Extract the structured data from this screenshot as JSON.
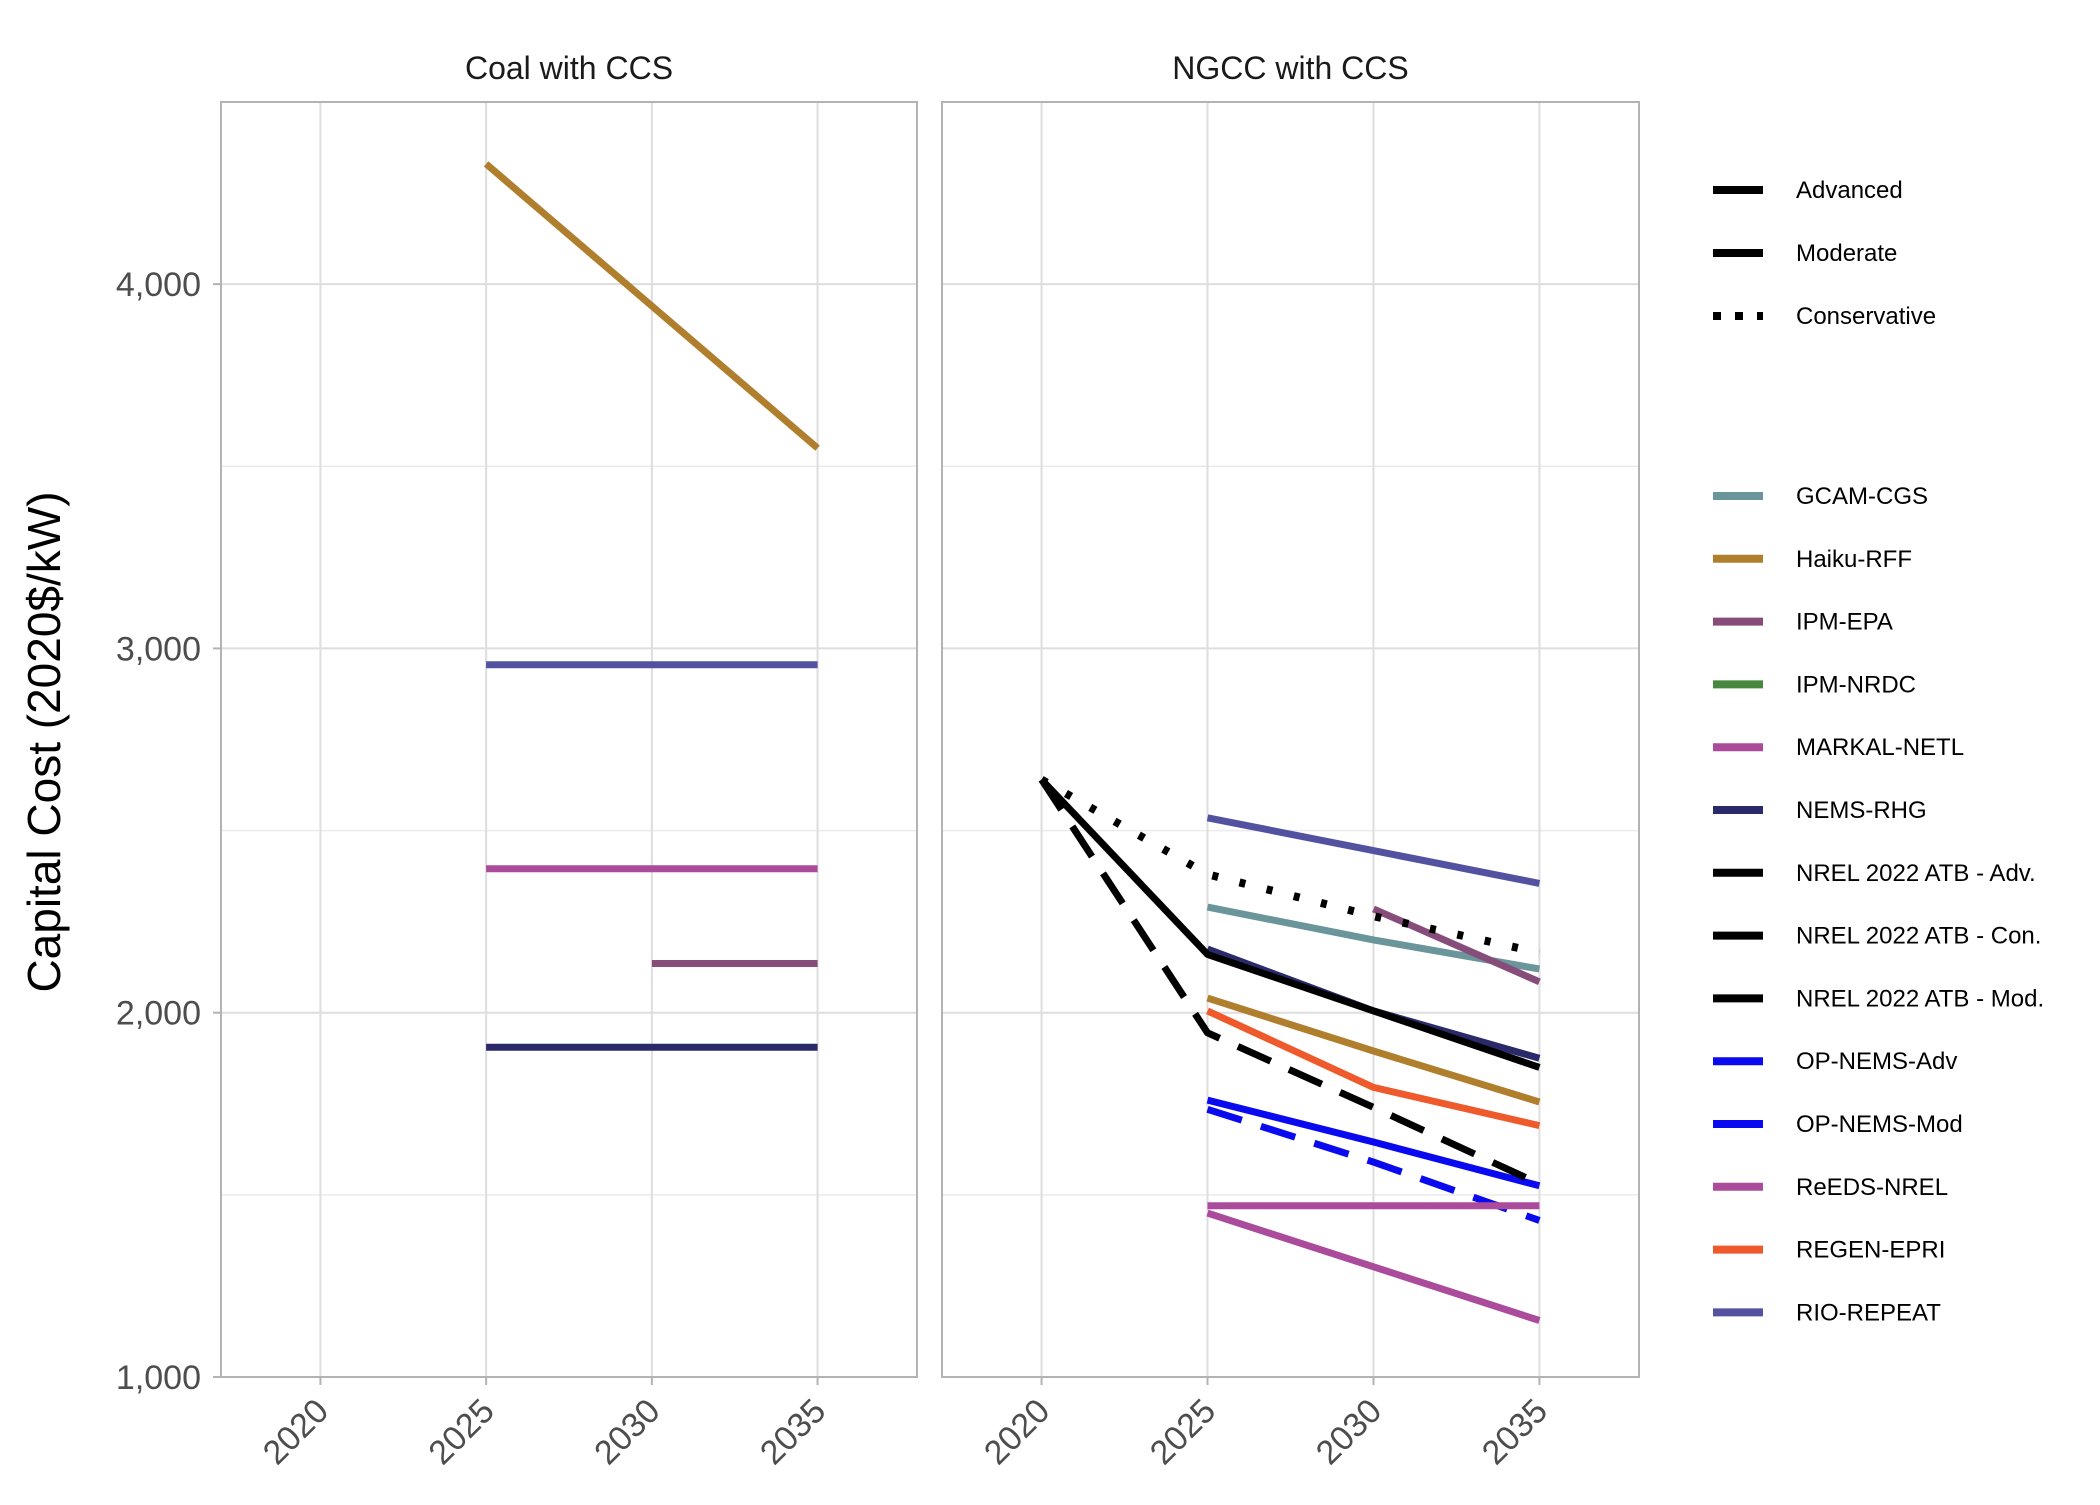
{
  "chart_data": {
    "type": "line",
    "ylabel": "Capital Cost (2020$/kW)",
    "y_ticks": [
      {
        "value": 1000,
        "label": "1,000"
      },
      {
        "value": 2000,
        "label": "2,000"
      },
      {
        "value": 3000,
        "label": "3,000"
      },
      {
        "value": 4000,
        "label": "4,000"
      }
    ],
    "y_minor": [
      1500,
      2500,
      3500
    ],
    "ylim": [
      1000,
      4500
    ],
    "x_ticks": [
      {
        "value": 2020,
        "label": "2020"
      },
      {
        "value": 2025,
        "label": "2025"
      },
      {
        "value": 2030,
        "label": "2030"
      },
      {
        "value": 2035,
        "label": "2035"
      }
    ],
    "xlim": [
      2017,
      2038
    ],
    "grid": true,
    "legend_position": "right",
    "linetype_legend": [
      {
        "label": "Advanced",
        "dash": "solid"
      },
      {
        "label": "Moderate",
        "dash": "solid"
      },
      {
        "label": "Conservative",
        "dash": "dotted"
      }
    ],
    "color_legend": [
      {
        "label": "GCAM-CGS",
        "color": "#6a959b"
      },
      {
        "label": "Haiku-RFF",
        "color": "#b07f2e"
      },
      {
        "label": "IPM-EPA",
        "color": "#874d7a"
      },
      {
        "label": "IPM-NRDC",
        "color": "#46883d"
      },
      {
        "label": "MARKAL-NETL",
        "color": "#aa4b9b"
      },
      {
        "label": "NEMS-RHG",
        "color": "#2a2a6a"
      },
      {
        "label": "NREL 2022 ATB - Adv.",
        "color": "#000000"
      },
      {
        "label": "NREL 2022 ATB - Con.",
        "color": "#000000"
      },
      {
        "label": "NREL 2022 ATB - Mod.",
        "color": "#000000"
      },
      {
        "label": "OP-NEMS-Adv",
        "color": "#0a0af0"
      },
      {
        "label": "OP-NEMS-Mod",
        "color": "#0a0af0"
      },
      {
        "label": "ReEDS-NREL",
        "color": "#aa4b9b"
      },
      {
        "label": "REGEN-EPRI",
        "color": "#ee5a2c"
      },
      {
        "label": "RIO-REPEAT",
        "color": "#5252a0"
      }
    ],
    "panels": [
      {
        "title": "Coal with CCS",
        "series": [
          {
            "model": "Haiku-RFF",
            "color": "#b07f2e",
            "dash": "solid",
            "x": [
              2025,
              2035
            ],
            "y": [
              4330,
              3550
            ]
          },
          {
            "model": "RIO-REPEAT",
            "color": "#5252a0",
            "dash": "solid",
            "x": [
              2025,
              2035
            ],
            "y": [
              2955,
              2955
            ]
          },
          {
            "model": "MARKAL-NETL",
            "color": "#aa4b9b",
            "dash": "solid",
            "x": [
              2025,
              2035
            ],
            "y": [
              2395,
              2395
            ]
          },
          {
            "model": "IPM-EPA",
            "color": "#874d7a",
            "dash": "solid",
            "x": [
              2030,
              2035
            ],
            "y": [
              2135,
              2135
            ]
          },
          {
            "model": "NEMS-RHG",
            "color": "#2a2a6a",
            "dash": "solid",
            "x": [
              2025,
              2035
            ],
            "y": [
              1905,
              1905
            ]
          }
        ]
      },
      {
        "title": "NGCC with CCS",
        "series": [
          {
            "model": "RIO-REPEAT",
            "color": "#5252a0",
            "dash": "solid",
            "x": [
              2025,
              2035
            ],
            "y": [
              2535,
              2355
            ]
          },
          {
            "model": "GCAM-CGS",
            "color": "#6a959b",
            "dash": "solid",
            "x": [
              2025,
              2030,
              2035
            ],
            "y": [
              2290,
              2200,
              2120
            ]
          },
          {
            "model": "IPM-EPA",
            "color": "#874d7a",
            "dash": "solid",
            "x": [
              2030,
              2035
            ],
            "y": [
              2285,
              2085
            ]
          },
          {
            "model": "NEMS-RHG",
            "color": "#2a2a6a",
            "dash": "solid",
            "x": [
              2025,
              2030,
              2035
            ],
            "y": [
              2175,
              2005,
              1875
            ]
          },
          {
            "model": "Haiku-RFF",
            "color": "#b07f2e",
            "dash": "solid",
            "x": [
              2025,
              2030,
              2035
            ],
            "y": [
              2040,
              1895,
              1755
            ]
          },
          {
            "model": "REGEN-EPRI",
            "color": "#ee5a2c",
            "dash": "solid",
            "x": [
              2025,
              2030,
              2035
            ],
            "y": [
              2005,
              1795,
              1690
            ]
          },
          {
            "model": "OP-NEMS-Mod",
            "color": "#0a0af0",
            "dash": "solid",
            "x": [
              2025,
              2030,
              2035
            ],
            "y": [
              1760,
              1645,
              1525
            ]
          },
          {
            "model": "OP-NEMS-Adv",
            "color": "#0a0af0",
            "dash": "dashed",
            "x": [
              2025,
              2030,
              2035
            ],
            "y": [
              1735,
              1590,
              1430
            ]
          },
          {
            "model": "ReEDS-NREL",
            "color": "#aa4b9b",
            "dash": "solid",
            "x": [
              2025,
              2035
            ],
            "y": [
              1470,
              1470
            ]
          },
          {
            "model": "MARKAL-NETL",
            "color": "#aa4b9b",
            "dash": "solid",
            "x": [
              2025,
              2035
            ],
            "y": [
              1450,
              1155
            ]
          },
          {
            "model": "NREL 2022 ATB - Con.",
            "color": "#000000",
            "dash": "dotted",
            "x": [
              2020,
              2025,
              2030,
              2035
            ],
            "y": [
              2640,
              2380,
              2265,
              2165
            ]
          },
          {
            "model": "NREL 2022 ATB - Mod.",
            "color": "#000000",
            "dash": "solid",
            "x": [
              2020,
              2025,
              2030,
              2035
            ],
            "y": [
              2640,
              2160,
              2005,
              1850
            ]
          },
          {
            "model": "NREL 2022 ATB - Adv.",
            "color": "#000000",
            "dash": "dashed",
            "x": [
              2020,
              2025,
              2030,
              2035
            ],
            "y": [
              2640,
              1945,
              1740,
              1530
            ]
          }
        ]
      }
    ]
  }
}
